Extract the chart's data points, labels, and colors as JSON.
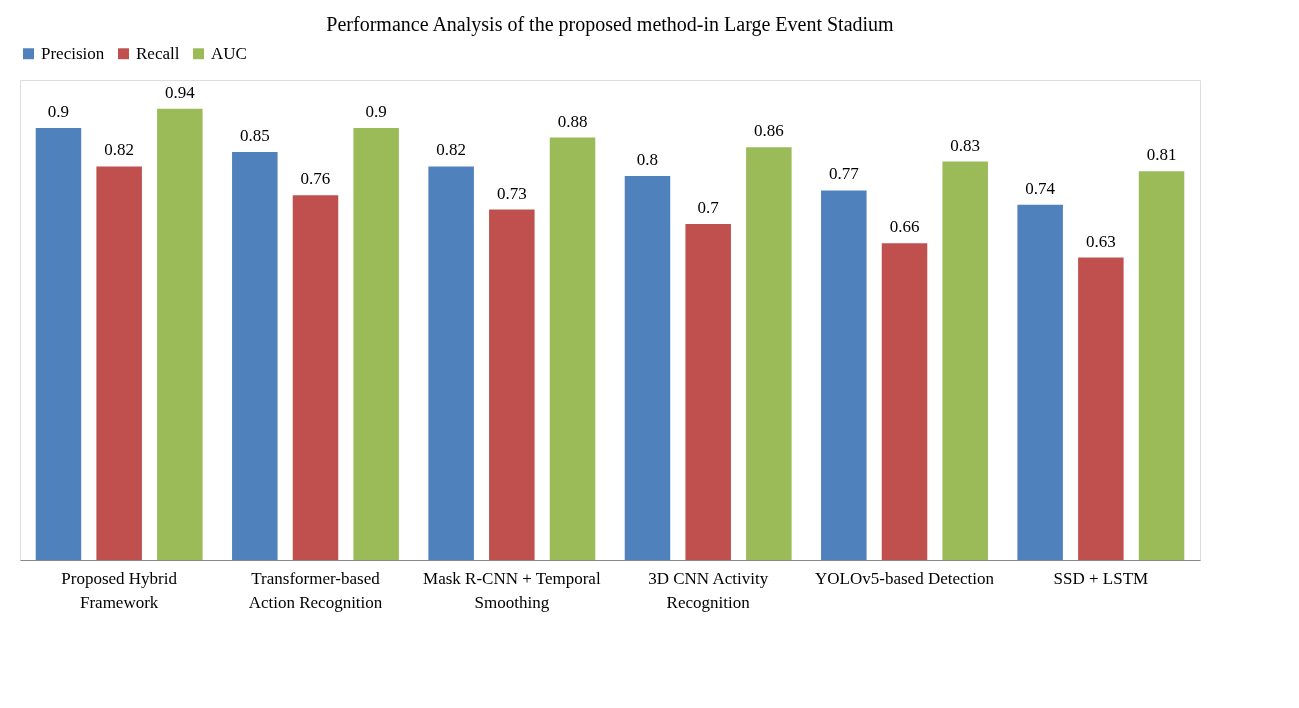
{
  "chart_data": {
    "type": "bar",
    "title": "Performance Analysis of the proposed method-in Large Event Stadium",
    "categories": [
      "Proposed Hybrid Framework",
      "Transformer-based Action Recognition",
      "Mask R-CNN + Temporal Smoothing",
      "3D CNN Activity Recognition",
      "YOLOv5-based Detection",
      "SSD + LSTM"
    ],
    "series": [
      {
        "name": "Precision",
        "color": "#4f81bd",
        "values": [
          0.9,
          0.85,
          0.82,
          0.8,
          0.77,
          0.74
        ]
      },
      {
        "name": "Recall",
        "color": "#c0504d",
        "values": [
          0.82,
          0.76,
          0.73,
          0.7,
          0.66,
          0.63
        ]
      },
      {
        "name": "AUC",
        "color": "#9bbb59",
        "values": [
          0.94,
          0.9,
          0.88,
          0.86,
          0.83,
          0.81
        ]
      }
    ],
    "ylim": [
      0,
      1
    ],
    "tick_labels": "x",
    "data_labels": true,
    "legend": "top",
    "grid": false
  }
}
